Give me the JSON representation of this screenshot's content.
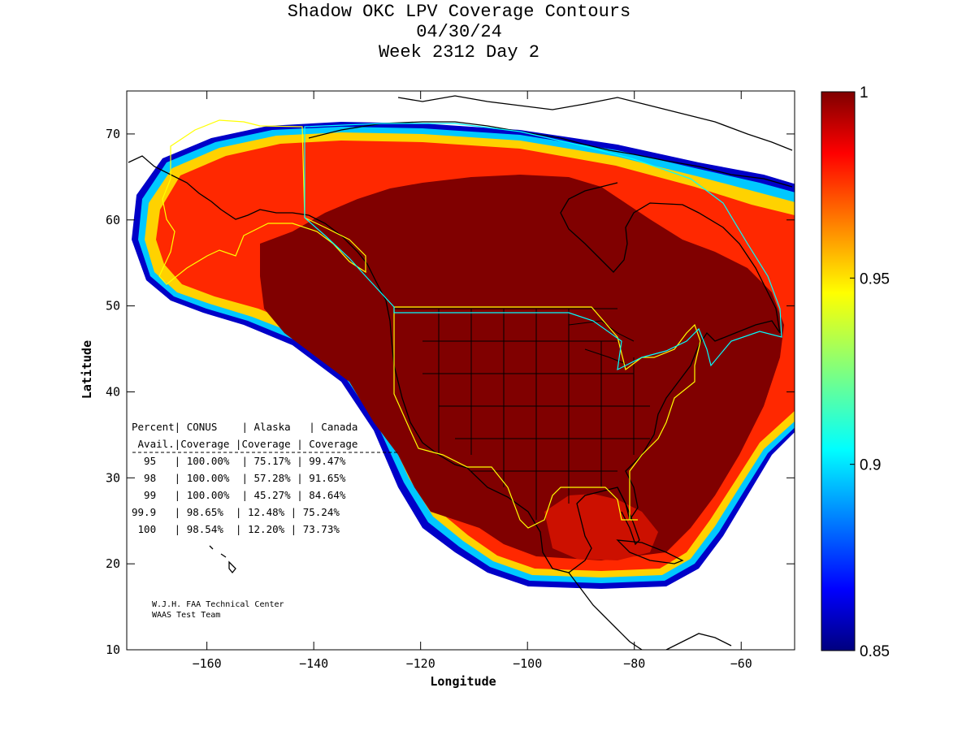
{
  "title": {
    "line1": "Shadow OKC LPV Coverage Contours",
    "line2": "04/30/24",
    "line3": "Week 2312 Day 2"
  },
  "axes": {
    "xlabel": "Longitude",
    "ylabel": "Latitude",
    "xlim": [
      -175,
      -50
    ],
    "ylim": [
      10,
      75
    ],
    "xticks": [
      -160,
      -140,
      -120,
      -100,
      -80,
      -60
    ],
    "yticks": [
      10,
      20,
      30,
      40,
      50,
      60,
      70
    ]
  },
  "colorbar": {
    "range": [
      0.85,
      1
    ],
    "tick_labels": [
      "1",
      "0.95",
      "0.9",
      "0.85"
    ],
    "tick_values": [
      1,
      0.95,
      0.9,
      0.85
    ],
    "colormap": "jet"
  },
  "table": {
    "header1": "Percent| CONUS    | Alaska   | Canada",
    "header2": " Avail.|Coverage |Coverage | Coverage",
    "rows": [
      "  95   | 100.00%  | 75.17% | 99.47%",
      "  98   | 100.00%  | 57.28% | 91.65%",
      "  99   | 100.00%  | 45.27% | 84.64%",
      "99.9   | 98.65%  | 12.48% | 75.24%",
      " 100   | 98.54%  | 12.20% | 73.73%"
    ]
  },
  "credit": {
    "line1": "W.J.H. FAA Technical Center",
    "line2": "WAAS Test Team"
  },
  "colors": {
    "region_outline": "#ffff00",
    "region_outline_alt": "#00ffff",
    "coastline": "#000000",
    "full_coverage": "#800000"
  }
}
